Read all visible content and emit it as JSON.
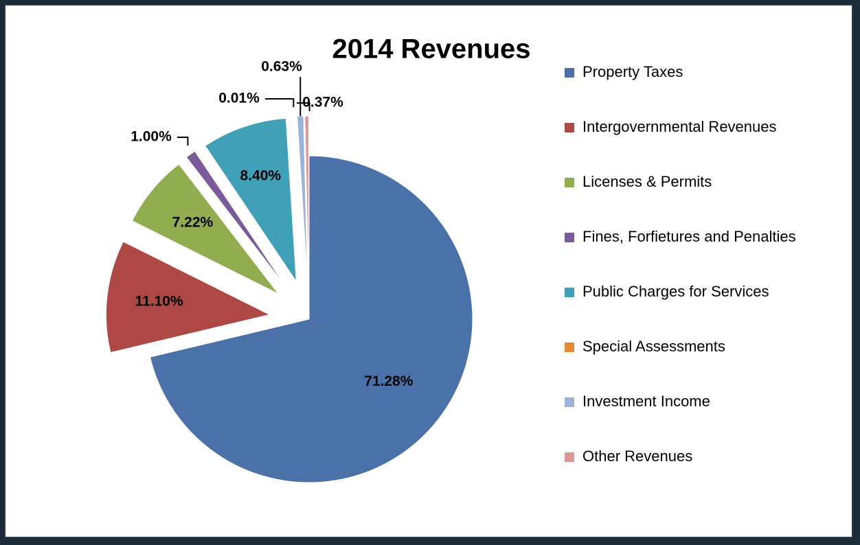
{
  "chart_data": {
    "type": "pie",
    "title": "2014 Revenues",
    "categories": [
      "Property Taxes",
      "Intergovernmental Revenues",
      "Licenses & Permits",
      "Fines, Forfietures and Penalties",
      "Public Charges for Services",
      "Special Assessments",
      "Investment Income",
      "Other Revenues"
    ],
    "values": [
      71.28,
      11.1,
      7.22,
      1.0,
      8.4,
      0.01,
      0.63,
      0.37
    ],
    "value_labels": [
      "71.28%",
      "11.10%",
      "7.22%",
      "1.00%",
      "8.40%",
      "0.01%",
      "0.63%",
      "0.37%"
    ],
    "colors": [
      "#4a71a8",
      "#ad4845",
      "#91ad4f",
      "#7a5a9a",
      "#3fa0b8",
      "#e38a33",
      "#9cb2d8",
      "#d99694"
    ],
    "legend": "right"
  }
}
